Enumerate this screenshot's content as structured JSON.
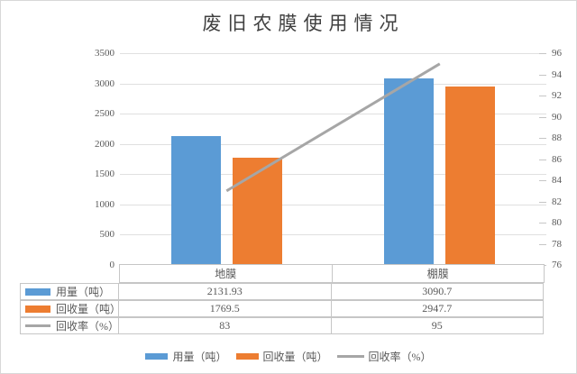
{
  "title": "废旧农膜使用情况",
  "colors": {
    "usage_bar": "#5B9BD5",
    "recycle_bar": "#ED7D31",
    "rate_line": "#A6A6A6",
    "gridline": "#E0E0E0",
    "table_border": "#C6C6C6",
    "axis_text": "#595959",
    "title_text": "#404040"
  },
  "chart_data": {
    "type": "bar",
    "title": "废旧农膜使用情况",
    "categories": [
      "地膜",
      "棚膜"
    ],
    "series": [
      {
        "name": "用量（吨）",
        "type": "bar",
        "color": "#5B9BD5",
        "axis": "left",
        "values": [
          2131.93,
          3090.7
        ]
      },
      {
        "name": "回收量（吨）",
        "type": "bar",
        "color": "#ED7D31",
        "axis": "left",
        "values": [
          1769.5,
          2947.7
        ]
      },
      {
        "name": "回收率（%）",
        "type": "line",
        "color": "#A6A6A6",
        "axis": "right",
        "values": [
          83,
          95
        ]
      }
    ],
    "left_axis": {
      "min": 0,
      "max": 3500,
      "step": 500,
      "ticks": [
        "3500",
        "3000",
        "2500",
        "2000",
        "1500",
        "1000",
        "500",
        "0"
      ]
    },
    "right_axis": {
      "min": 76,
      "max": 96,
      "step": 2,
      "ticks": [
        "96",
        "94",
        "92",
        "90",
        "88",
        "86",
        "84",
        "82",
        "80",
        "78",
        "76"
      ]
    },
    "grid": true,
    "legend_position": "bottom",
    "data_table_shown": true
  },
  "table": {
    "column_headers": [
      "地膜",
      "棚膜"
    ],
    "rows": [
      {
        "label": "用量（吨）",
        "swatch": "bar-blue",
        "cells": [
          "2131.93",
          "3090.7"
        ]
      },
      {
        "label": "回收量（吨）",
        "swatch": "bar-orange",
        "cells": [
          "1769.5",
          "2947.7"
        ]
      },
      {
        "label": "回收率（%）",
        "swatch": "line-gray",
        "cells": [
          "83",
          "95"
        ]
      }
    ]
  },
  "legend": {
    "items": [
      {
        "label": "用量（吨）",
        "swatch": "bar-blue"
      },
      {
        "label": "回收量（吨）",
        "swatch": "bar-orange"
      },
      {
        "label": "回收率（%）",
        "swatch": "line-gray"
      }
    ]
  }
}
